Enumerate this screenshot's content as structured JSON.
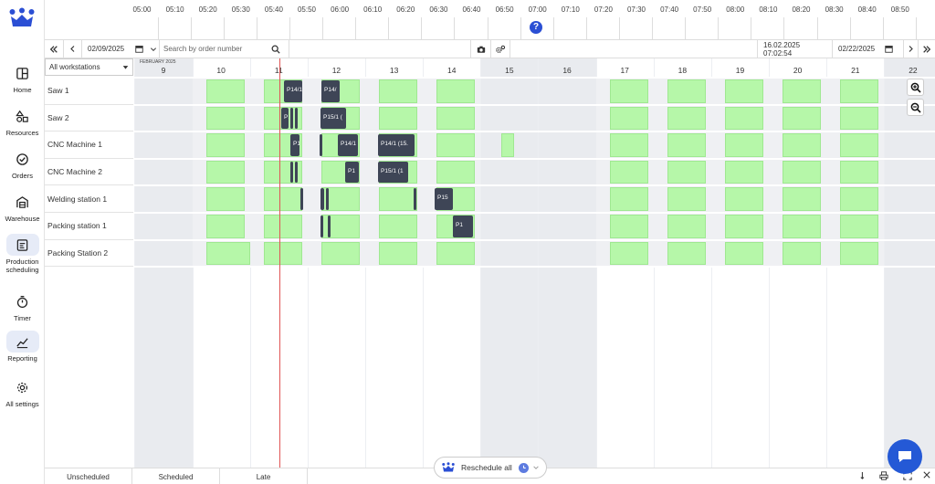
{
  "sidebar": {
    "items": [
      {
        "label": "Home",
        "icon": "layout-icon"
      },
      {
        "label": "Resources",
        "icon": "shapes-icon"
      },
      {
        "label": "Orders",
        "icon": "check-circle-icon"
      },
      {
        "label": "Warehouse",
        "icon": "warehouse-icon"
      },
      {
        "label": "Production scheduling",
        "icon": "schedule-icon",
        "active": true
      },
      {
        "label": "Timer",
        "icon": "stopwatch-icon"
      },
      {
        "label": "Reporting",
        "icon": "chart-line-icon",
        "active": true
      },
      {
        "label": "All settings",
        "icon": "gear-icon"
      }
    ]
  },
  "time_axis": {
    "labels": [
      "05:00",
      "05:10",
      "05:20",
      "05:30",
      "05:40",
      "05:50",
      "06:00",
      "06:10",
      "06:20",
      "06:30",
      "06:40",
      "06:50",
      "07:00",
      "07:10",
      "07:20",
      "07:30",
      "07:40",
      "07:50",
      "08:00",
      "08:10",
      "08:20",
      "08:30",
      "08:40",
      "08:50"
    ],
    "help": "?"
  },
  "toolbar": {
    "start_date": "02/09/2025",
    "search_placeholder": "Search by order number",
    "current_time": "16.02.2025 07:02:54",
    "end_date": "02/22/2025"
  },
  "schedule": {
    "workstation_filter": "All workstations",
    "month_label": "FEBRUARY 2025",
    "days": [
      "9",
      "10",
      "11",
      "12",
      "13",
      "14",
      "15",
      "16",
      "17",
      "18",
      "19",
      "20",
      "21",
      "22"
    ],
    "weekend_days": [
      "9",
      "15",
      "16",
      "22"
    ],
    "rows": [
      "Saw 1",
      "Saw 2",
      "CNC Machine 1",
      "CNC Machine 2",
      "Welding station 1",
      "Packing station 1",
      "Packing Station 2"
    ],
    "tasks": [
      {
        "row": 0,
        "label": "P14/1"
      },
      {
        "row": 0,
        "label": "P14/"
      },
      {
        "row": 1,
        "label": "P1"
      },
      {
        "row": 1,
        "label": ""
      },
      {
        "row": 1,
        "label": ""
      },
      {
        "row": 1,
        "label": "P15/1 ("
      },
      {
        "row": 2,
        "label": "P1"
      },
      {
        "row": 2,
        "label": ""
      },
      {
        "row": 2,
        "label": "P14/1"
      },
      {
        "row": 2,
        "label": "P14/1 (15."
      },
      {
        "row": 3,
        "label": ""
      },
      {
        "row": 3,
        "label": ""
      },
      {
        "row": 3,
        "label": "P1"
      },
      {
        "row": 3,
        "label": "P15/1 (1"
      },
      {
        "row": 4,
        "label": ""
      },
      {
        "row": 4,
        "label": ""
      },
      {
        "row": 4,
        "label": ""
      },
      {
        "row": 4,
        "label": "P14/"
      },
      {
        "row": 4,
        "label": "P15"
      },
      {
        "row": 5,
        "label": ""
      },
      {
        "row": 5,
        "label": ""
      },
      {
        "row": 5,
        "label": "P14/"
      },
      {
        "row": 5,
        "label": "P1"
      }
    ]
  },
  "bottom": {
    "tabs": [
      "Unscheduled",
      "Scheduled",
      "Late"
    ],
    "reschedule_label": "Reschedule all"
  },
  "colors": {
    "accent": "#2b4fd4",
    "available": "#b6f7a9",
    "task": "#3e4556",
    "now_line": "#e05555",
    "weekend": "#e9ebef"
  }
}
